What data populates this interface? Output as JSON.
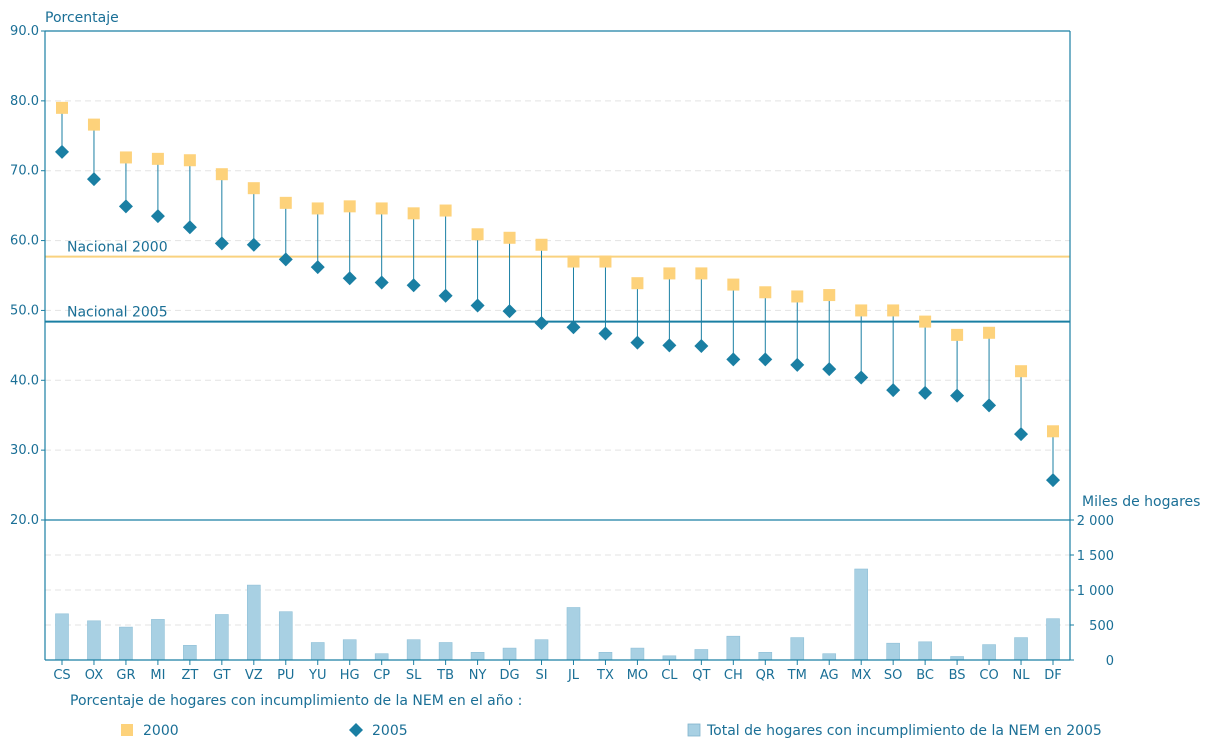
{
  "chart_data": {
    "type": "scatter",
    "categories": [
      "CS",
      "OX",
      "GR",
      "MI",
      "ZT",
      "GT",
      "VZ",
      "PU",
      "YU",
      "HG",
      "CP",
      "SL",
      "TB",
      "NY",
      "DG",
      "SI",
      "JL",
      "TX",
      "MO",
      "CL",
      "QT",
      "CH",
      "QR",
      "TM",
      "AG",
      "MX",
      "SO",
      "BC",
      "BS",
      "CO",
      "NL",
      "DF"
    ],
    "top_panel": {
      "ylabel": "Porcentaje",
      "ylim": [
        20,
        90
      ],
      "yticks": [
        "90.0",
        "80.0",
        "70.0",
        "60.0",
        "50.0",
        "40.0",
        "30.0",
        "20.0"
      ],
      "series": [
        {
          "name": "2000",
          "marker": "square",
          "color": "#fdd27b",
          "values": [
            79.0,
            76.6,
            71.9,
            71.7,
            71.5,
            69.5,
            67.5,
            65.4,
            64.6,
            64.9,
            64.6,
            63.9,
            64.3,
            60.9,
            60.4,
            59.4,
            57.0,
            57.0,
            53.9,
            55.3,
            55.3,
            53.7,
            52.6,
            52.0,
            52.2,
            50.0,
            50.0,
            48.4,
            46.5,
            46.8,
            41.3,
            32.7
          ]
        },
        {
          "name": "2005",
          "marker": "diamond",
          "color": "#1a7fa3",
          "values": [
            72.7,
            68.8,
            64.9,
            63.5,
            61.9,
            59.6,
            59.4,
            57.3,
            56.2,
            54.6,
            54.0,
            53.6,
            52.1,
            50.7,
            49.9,
            48.2,
            47.6,
            46.7,
            45.4,
            45.0,
            44.9,
            43.0,
            43.0,
            42.2,
            41.6,
            40.4,
            38.6,
            38.2,
            37.8,
            36.4,
            32.3,
            25.7
          ]
        }
      ],
      "reference_lines": [
        {
          "label": "Nacional 2000",
          "value": 57.7,
          "color": "#f9d27f"
        },
        {
          "label": "Nacional 2005",
          "value": 48.4,
          "color": "#1a7fa3"
        }
      ]
    },
    "bottom_panel": {
      "ylabel": "Miles de hogares",
      "ylim": [
        0,
        2000
      ],
      "yticks": [
        "2 000",
        "1 500",
        "1 000",
        "500",
        "0"
      ],
      "series": [
        {
          "name": "Total de hogares con incumplimiento de la NEM en 2005",
          "color": "#a8d0e3",
          "values": [
            660,
            560,
            470,
            580,
            210,
            650,
            1070,
            690,
            250,
            290,
            90,
            290,
            250,
            110,
            170,
            290,
            750,
            110,
            170,
            60,
            150,
            340,
            110,
            320,
            90,
            1300,
            240,
            260,
            50,
            220,
            320,
            590
          ]
        }
      ]
    },
    "legend": {
      "title": "Porcentaje de hogares con incumplimiento de la NEM en el año :",
      "items": [
        "2000",
        "2005",
        "Total de hogares con incumplimiento de la NEM en 2005"
      ]
    },
    "grid": "horizontal-dashed"
  }
}
